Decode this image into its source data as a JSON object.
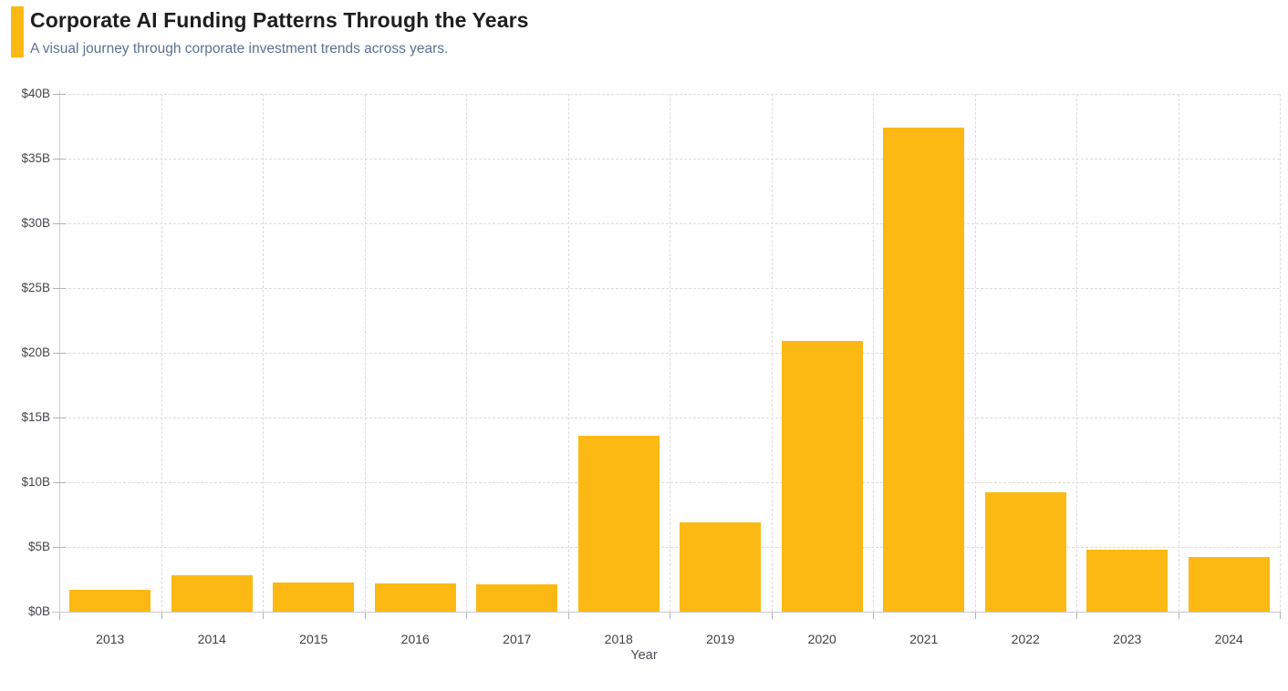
{
  "header": {
    "accent_color": "#FDB913"
  },
  "chart_data": {
    "type": "bar",
    "title": "Corporate AI Funding Patterns Through the Years",
    "subtitle": "A visual journey through corporate investment trends across years.",
    "xlabel": "Year",
    "ylabel": "",
    "unit": "USD billions",
    "categories": [
      "2013",
      "2014",
      "2015",
      "2016",
      "2017",
      "2018",
      "2019",
      "2020",
      "2021",
      "2022",
      "2023",
      "2024"
    ],
    "values": [
      1.7,
      2.8,
      2.25,
      2.2,
      2.1,
      13.6,
      6.9,
      20.9,
      37.4,
      9.2,
      4.8,
      4.2
    ],
    "ylim": [
      0,
      40
    ],
    "ytick_step": 5,
    "ytick_labels": [
      "$0B",
      "$5B",
      "$10B",
      "$15B",
      "$20B",
      "$25B",
      "$30B",
      "$35B",
      "$40B"
    ],
    "grid": "dashed horizontal and vertical gridlines",
    "legend": "none",
    "bar_color": "#FDB913",
    "axis_label_color": "#45454d"
  }
}
